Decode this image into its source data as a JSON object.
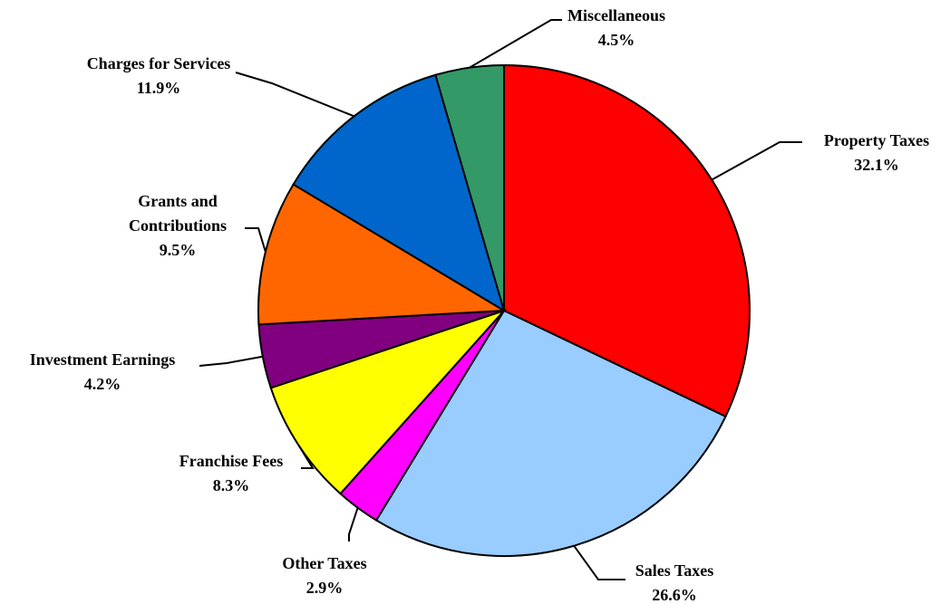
{
  "chart_data": {
    "type": "pie",
    "categories": [
      "Property Taxes",
      "Sales Taxes",
      "Other Taxes",
      "Franchise Fees",
      "Investment Earnings",
      "Grants and Contributions",
      "Charges for Services",
      "Miscellaneous"
    ],
    "values": [
      32.1,
      26.6,
      2.9,
      8.3,
      4.2,
      9.5,
      11.9,
      4.5
    ],
    "value_labels": [
      "32.1%",
      "26.6%",
      "2.9%",
      "8.3%",
      "4.2%",
      "9.5%",
      "11.9%",
      "4.5%"
    ],
    "colors": [
      "#ff0000",
      "#99ccff",
      "#ff00ff",
      "#ffff00",
      "#800080",
      "#ff6600",
      "#0066cc",
      "#339966"
    ]
  }
}
